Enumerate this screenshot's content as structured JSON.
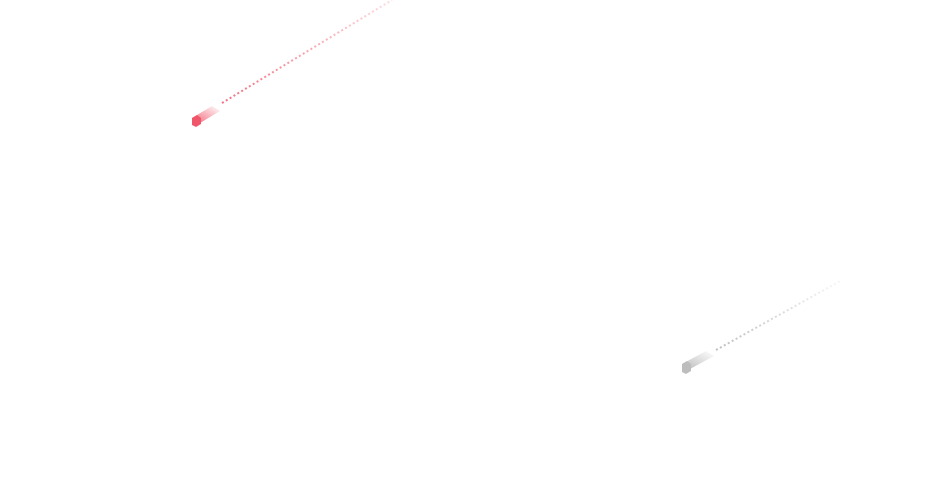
{
  "decorations": {
    "streaks": [
      {
        "name": "red-streak",
        "color": "#f0566a"
      },
      {
        "name": "gray-streak",
        "color": "#b4b4b4"
      }
    ]
  }
}
